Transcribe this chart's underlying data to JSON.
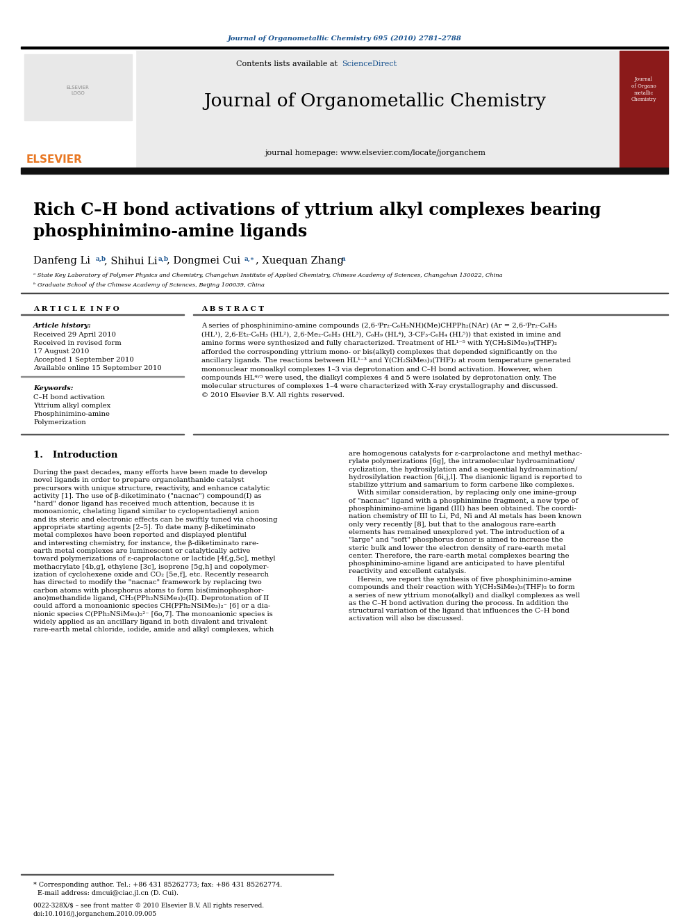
{
  "journal_ref": "Journal of Organometallic Chemistry 695 (2010) 2781–2788",
  "journal_name": "Journal of Organometallic Chemistry",
  "contents_text": "Contents lists available at ScienceDirect",
  "sciencedirect_text": "ScienceDirect",
  "homepage_text": "journal homepage: www.elsevier.com/locate/jorganchem",
  "elsevier_text": "ELSEVIER",
  "title": "Rich C–H bond activations of yttrium alkyl complexes bearing\nphosphinimino-amine ligands",
  "affil_a": "ᵃ State Key Laboratory of Polymer Physics and Chemistry, Changchun Institute of Applied Chemistry, Chinese Academy of Sciences, Changchun 130022, China",
  "affil_b": "ᵇ Graduate School of the Chinese Academy of Sciences, Beijing 100039, China",
  "article_info_title": "A R T I C L E  I N F O",
  "abstract_title": "A B S T R A C T",
  "article_history_label": "Article history:",
  "received1": "Received 29 April 2010",
  "received2": "Received in revised form",
  "received2b": "17 August 2010",
  "accepted": "Accepted 1 September 2010",
  "available": "Available online 15 September 2010",
  "keywords_label": "Keywords:",
  "kw1": "C–H bond activation",
  "kw2": "Yttrium alkyl complex",
  "kw3": "Phosphinimino-amine",
  "kw4": "Polymerization",
  "abstract_text": "A series of phosphinimino-amine compounds (2,6-ⁱPr₂-C₆H₃NH)(Me)CHPPh₂(NAr) (Ar = 2,6-ⁱPr₂-C₆H₃\n(HL¹), 2,6-Et₂-C₆H₃ (HL²), 2,6-Me₂-C₆H₃ (HL³), C₆H₉ (HL⁴), 3-CF₃-C₆H₄ (HL⁵)) that existed in imine and\namine forms were synthesized and fully characterized. Treatment of HL¹⁻⁵ with Y(CH₂SiMe₃)₃(THF)₂\nafforded the corresponding yttrium mono- or bis(alkyl) complexes that depended significantly on the\nancillary ligands. The reactions between HL¹⁻³ and Y(CH₂SiMe₃)₃(THF)₂ at room temperature generated\nmononuclear monoalkyl complexes 1–3 via deprotonation and C–H bond activation. However, when\ncompounds HL⁴ʸ⁵ were used, the dialkyl complexes 4 and 5 were isolated by deprotonation only. The\nmolecular structures of complexes 1–4 were characterized with X-ray crystallography and discussed.\n© 2010 Elsevier B.V. All rights reserved.",
  "intro_heading": "1.   Introduction",
  "intro_col1_lines": [
    "During the past decades, many efforts have been made to develop",
    "novel ligands in order to prepare organolanthanide catalyst",
    "precursors with unique structure, reactivity, and enhance catalytic",
    "activity [1]. The use of β-diketiminato (\"nacnac\") compound(I) as",
    "\"hard\" donor ligand has received much attention, because it is",
    "monoanionic, chelating ligand similar to cyclopentadienyl anion",
    "and its steric and electronic effects can be swiftly tuned via choosing",
    "appropriate starting agents [2–5]. To date many β-diketiminato",
    "metal complexes have been reported and displayed plentiful",
    "and interesting chemistry, for instance, the β-diketiminato rare-",
    "earth metal complexes are luminescent or catalytically active",
    "toward polymerizations of ε-caprolactone or lactide [4f,g,5c], methyl",
    "methacrylate [4b,g], ethylene [3c], isoprene [5g,h] and copolymer-",
    "ization of cyclohexene oxide and CO₂ [5e,f], etc. Recently research",
    "has directed to modify the \"nacnac\" framework by replacing two",
    "carbon atoms with phosphorus atoms to form bis(iminophosphor-",
    "ano)methandide ligand, CH₂(PPh₂NSiMe₃)₂(II). Deprotonation of II",
    "could afford a monoanionic species CH(PPh₂NSiMe₃)₂⁻ [6] or a dia-",
    "nionic species C(PPh₂NSiMe₃)₂²⁻ [6o,7]. The monoanionic species is",
    "widely applied as an ancillary ligand in both divalent and trivalent",
    "rare-earth metal chloride, iodide, amide and alkyl complexes, which"
  ],
  "intro_col2_lines": [
    "are homogenous catalysts for ε-carprolactone and methyl methac-",
    "rylate polymerizations [6g], the intramolecular hydroamination/",
    "cyclization, the hydrosilylation and a sequential hydroamination/",
    "hydrosilylation reaction [6i,j,l]. The dianionic ligand is reported to",
    "stabilize yttrium and samarium to form carbene like complexes.",
    "    With similar consideration, by replacing only one imine-group",
    "of \"nacnac\" ligand with a phosphinimine fragment, a new type of",
    "phosphinimino-amine ligand (III) has been obtained. The coordi-",
    "nation chemistry of III to Li, Pd, Ni and Al metals has been known",
    "only very recently [8], but that to the analogous rare-earth",
    "elements has remained unexplored yet. The introduction of a",
    "\"large\" and \"soft\" phosphorus donor is aimed to increase the",
    "steric bulk and lower the electron density of rare-earth metal",
    "center. Therefore, the rare-earth metal complexes bearing the",
    "phosphinimino-amine ligand are anticipated to have plentiful",
    "reactivity and excellent catalysis.",
    "    Herein, we report the synthesis of five phosphinimino-amine",
    "compounds and their reaction with Y(CH₂SiMe₃)₃(THF)₂ to form",
    "a series of new yttrium mono(alkyl) and dialkyl complexes as well",
    "as the C–H bond activation during the process. In addition the",
    "structural variation of the ligand that influences the C–H bond",
    "activation will also be discussed."
  ],
  "footer_line1": "* Corresponding author. Tel.: +86 431 85262773; fax: +86 431 85262774.",
  "footer_line2": "  E-mail address: dmcui@ciac.jl.cn (D. Cui).",
  "footer_bottom1": "0022-328X/$ – see front matter © 2010 Elsevier B.V. All rights reserved.",
  "footer_bottom2": "doi:10.1016/j.jorganchem.2010.09.005",
  "bg_color": "#ffffff",
  "elsevier_orange": "#e87722",
  "link_color": "#1a5490",
  "dark_red": "#8B1A1A"
}
